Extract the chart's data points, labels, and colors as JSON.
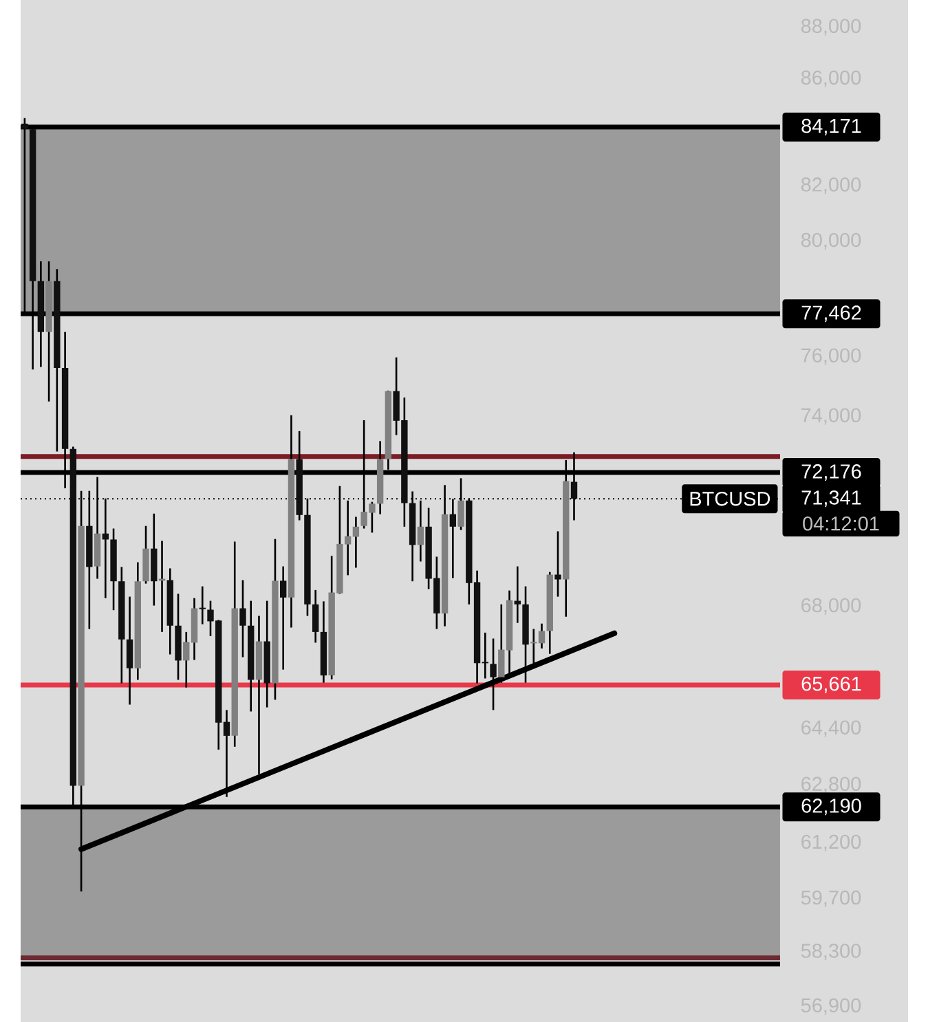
{
  "chart_data": {
    "type": "candlestick",
    "categories": [
      null,
      null,
      null,
      null,
      null,
      null,
      null,
      null,
      null,
      null,
      null,
      null,
      null,
      null,
      null,
      null,
      null,
      null,
      null,
      null,
      null,
      null,
      null,
      null,
      null,
      null,
      null,
      null,
      null,
      null,
      null,
      null,
      null,
      null,
      null,
      null,
      null,
      null,
      null,
      null,
      null,
      null,
      null,
      null,
      null,
      null,
      null,
      null,
      null,
      null,
      null,
      null,
      null,
      null,
      null,
      null,
      null,
      null,
      null,
      null,
      null,
      null,
      null,
      null,
      null,
      null,
      null,
      null,
      null,
      null,
      null,
      null,
      null,
      null,
      null,
      null,
      null,
      null,
      null,
      null,
      null,
      null,
      null,
      null,
      null,
      null,
      null,
      null,
      null,
      null,
      null,
      null,
      null,
      null
    ],
    "ohlc": [
      [
        84300,
        84510,
        77450,
        84100
      ],
      [
        84080,
        84150,
        75560,
        78600
      ],
      [
        78600,
        79300,
        75650,
        76840
      ],
      [
        76840,
        79300,
        74500,
        78600
      ],
      [
        78600,
        79030,
        72850,
        75620
      ],
      [
        75620,
        76840,
        71680,
        72940
      ],
      [
        72940,
        73010,
        62220,
        62780
      ],
      [
        62780,
        71590,
        59890,
        70480
      ],
      [
        70480,
        71590,
        67320,
        69200
      ],
      [
        69220,
        72030,
        68840,
        70240
      ],
      [
        70240,
        71350,
        68250,
        70050
      ],
      [
        70050,
        70400,
        67880,
        68760
      ],
      [
        68760,
        69200,
        65710,
        67010
      ],
      [
        67010,
        68290,
        65090,
        66150
      ],
      [
        66150,
        69350,
        65810,
        68760
      ],
      [
        68760,
        70480,
        68690,
        69770
      ],
      [
        69770,
        70870,
        68020,
        68760
      ],
      [
        68780,
        70010,
        67230,
        68840
      ],
      [
        68800,
        69160,
        66560,
        67420
      ],
      [
        67420,
        68380,
        65810,
        66380
      ],
      [
        66380,
        67230,
        65590,
        66930
      ],
      [
        66910,
        68250,
        66400,
        67940
      ],
      [
        67960,
        68610,
        67460,
        67920
      ],
      [
        67900,
        68170,
        67110,
        67550
      ],
      [
        67570,
        67590,
        63800,
        64570
      ],
      [
        64590,
        64930,
        62470,
        64190
      ],
      [
        64190,
        69990,
        63880,
        67940
      ],
      [
        67940,
        68800,
        66480,
        67420
      ],
      [
        67420,
        68170,
        64890,
        65810
      ],
      [
        65810,
        67710,
        63100,
        66950
      ],
      [
        66950,
        68170,
        65010,
        65710
      ],
      [
        65710,
        70070,
        65230,
        68780
      ],
      [
        68780,
        69220,
        66110,
        68270
      ],
      [
        68270,
        74040,
        67360,
        72610
      ],
      [
        72610,
        73520,
        70660,
        70830
      ],
      [
        70830,
        71350,
        67710,
        68060
      ],
      [
        68060,
        68500,
        66910,
        67230
      ],
      [
        67230,
        68150,
        65730,
        65940
      ],
      [
        65940,
        69540,
        65830,
        68420
      ],
      [
        68400,
        71740,
        68380,
        69920
      ],
      [
        69900,
        71280,
        68950,
        70160
      ],
      [
        70140,
        70760,
        69180,
        70460
      ],
      [
        70480,
        73880,
        70400,
        70920
      ],
      [
        70890,
        71240,
        70270,
        71180
      ],
      [
        71180,
        73190,
        70850,
        72610
      ],
      [
        72610,
        74860,
        72270,
        74840
      ],
      [
        74840,
        75970,
        73390,
        73860
      ],
      [
        73880,
        74630,
        70460,
        71200
      ],
      [
        71200,
        71570,
        68760,
        69880
      ],
      [
        69880,
        71280,
        69370,
        70460
      ],
      [
        70460,
        71050,
        68530,
        68840
      ],
      [
        68860,
        69520,
        67320,
        67790
      ],
      [
        67790,
        71770,
        67400,
        70850
      ],
      [
        70850,
        71330,
        68860,
        70460
      ],
      [
        70460,
        71990,
        70350,
        71280
      ],
      [
        71280,
        71350,
        68060,
        68710
      ],
      [
        68740,
        69090,
        65710,
        66300
      ],
      [
        66340,
        67210,
        65850,
        66300
      ],
      [
        66280,
        67030,
        64930,
        65890
      ],
      [
        65890,
        68060,
        65730,
        66700
      ],
      [
        66680,
        68480,
        65940,
        68190
      ],
      [
        68170,
        69220,
        67500,
        68060
      ],
      [
        68060,
        68610,
        65730,
        66850
      ],
      [
        66890,
        67320,
        66300,
        66930
      ],
      [
        66890,
        67480,
        66740,
        67260
      ],
      [
        67260,
        69050,
        66580,
        68970
      ],
      [
        68970,
        70310,
        68290,
        68820
      ],
      [
        68820,
        72580,
        67690,
        71900
      ],
      [
        71880,
        72830,
        70660,
        71340
      ],
      null,
      null,
      null,
      null,
      null,
      null,
      null,
      null,
      null,
      null,
      null,
      null,
      null,
      null,
      null,
      null,
      null,
      null,
      null,
      null,
      null,
      null,
      null,
      null,
      null
    ],
    "colors": [
      "#111111",
      "#111111",
      "#111111",
      "#808080",
      "#111111",
      "#111111",
      "#111111",
      "#808080",
      "#111111",
      "#808080",
      "#111111",
      "#111111",
      "#111111",
      "#111111",
      "#808080",
      "#808080",
      "#111111",
      "#808080",
      "#111111",
      "#111111",
      "#808080",
      "#808080",
      "#111111",
      "#111111",
      "#111111",
      "#111111",
      "#808080",
      "#111111",
      "#111111",
      "#808080",
      "#111111",
      "#808080",
      "#111111",
      "#808080",
      "#111111",
      "#111111",
      "#111111",
      "#111111",
      "#808080",
      "#808080",
      "#808080",
      "#808080",
      "#808080",
      "#808080",
      "#808080",
      "#808080",
      "#111111",
      "#111111",
      "#111111",
      "#808080",
      "#111111",
      "#111111",
      "#808080",
      "#111111",
      "#808080",
      "#111111",
      "#111111",
      "#111111",
      "#111111",
      "#808080",
      "#808080",
      "#111111",
      "#111111",
      "#808080",
      "#808080",
      "#808080",
      "#111111",
      "#808080",
      "#111111",
      null,
      null,
      null,
      null,
      null,
      null,
      null,
      null,
      null,
      null,
      null,
      null,
      null,
      null,
      null,
      null,
      null,
      null,
      null,
      null,
      null,
      null,
      null,
      null,
      null
    ],
    "series": [
      {
        "type": "line",
        "values": [
          null,
          null,
          null,
          null,
          null,
          null,
          null,
          61030,
          null,
          null,
          null,
          null,
          null,
          null,
          null,
          null,
          null,
          null,
          null,
          null,
          null,
          null,
          null,
          null,
          null,
          null,
          null,
          null,
          null,
          null,
          null,
          null,
          null,
          null,
          null,
          null,
          null,
          null,
          null,
          null,
          null,
          null,
          null,
          null,
          null,
          null,
          null,
          null,
          null,
          null,
          null,
          null,
          null,
          null,
          null,
          null,
          null,
          null,
          null,
          null,
          null,
          null,
          null,
          null,
          null,
          null,
          null,
          null,
          null,
          null,
          null,
          null,
          null,
          67190,
          null,
          null,
          null,
          null,
          null,
          null,
          null,
          null,
          null,
          null,
          null,
          null,
          null,
          null,
          null,
          null,
          null,
          null,
          null,
          null
        ],
        "color": "#000000"
      }
    ],
    "log": true,
    "ylim": [
      56520,
      89080
    ],
    "yticks": [
      {
        "value": 88000,
        "label": "88,000"
      },
      {
        "value": 86000,
        "label": "86,000"
      },
      {
        "value": 82000,
        "label": "82,000"
      },
      {
        "value": 80000,
        "label": "80,000"
      },
      {
        "value": 76000,
        "label": "76,000"
      },
      {
        "value": 74000,
        "label": "74,000"
      },
      {
        "value": 68000,
        "label": "68,000"
      },
      {
        "value": 64400,
        "label": "64,400"
      },
      {
        "value": 62800,
        "label": "62,800"
      },
      {
        "value": 61200,
        "label": "61,200"
      },
      {
        "value": 59700,
        "label": "59,700"
      },
      {
        "value": 58300,
        "label": "58,300"
      },
      {
        "value": 56900,
        "label": "56,900"
      }
    ],
    "tick_labels": "y",
    "bands": [
      {
        "axis": "y",
        "from": 77462,
        "to": 84171,
        "color": "#9b9b9b"
      },
      {
        "axis": "y",
        "from": 58150,
        "to": 62190,
        "color": "#9b9b9b"
      }
    ],
    "ref_lines": [
      {
        "axis": "y",
        "value": 84171,
        "label": "84,171",
        "color": "#000000"
      },
      {
        "axis": "y",
        "value": 77462,
        "label": "77,462",
        "color": "#000000"
      },
      {
        "axis": "y",
        "value": 72700,
        "color": "#7b1c25"
      },
      {
        "axis": "y",
        "value": 72176,
        "label": "72,176",
        "color": "#000000"
      },
      {
        "axis": "y",
        "value": 71341,
        "label": "71,341",
        "color": "#000000",
        "line_style": "dotted"
      },
      {
        "axis": "y",
        "value": 65661,
        "label": "65,661",
        "color": "#e8384a"
      },
      {
        "axis": "y",
        "value": 62190,
        "label": "62,190",
        "color": "#000000"
      },
      {
        "axis": "y",
        "value": 58150,
        "color": "#6e2a32"
      },
      {
        "axis": "y",
        "value": 57990,
        "color": "#000000"
      }
    ],
    "annotations": [
      "BTCUSD",
      "04:12:01"
    ]
  }
}
